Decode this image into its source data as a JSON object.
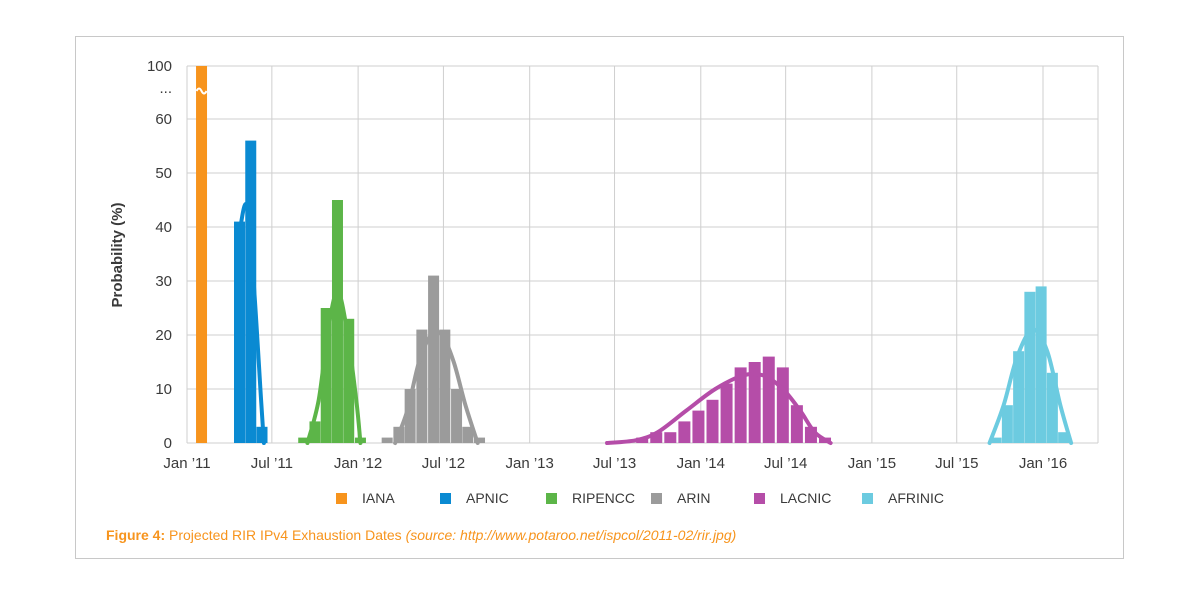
{
  "figure": {
    "label": "Figure 4:",
    "title": "Projected RIR IPv4 Exhaustion Dates",
    "source": "(source: http://www.potaroo.net/ispcol/2011-02/rir.jpg)"
  },
  "chart_data": {
    "type": "bar",
    "ylabel": "Probability (%)",
    "xlabel": "",
    "ylim": [
      0,
      100
    ],
    "y_ticks": [
      "0",
      "10",
      "20",
      "30",
      "40",
      "50",
      "60",
      "...",
      "100"
    ],
    "x_ticks": [
      {
        "label": "Jan ’11",
        "date": "2011-01"
      },
      {
        "label": "Jul ’11",
        "date": "2011-07"
      },
      {
        "label": "Jan ’12",
        "date": "2012-01"
      },
      {
        "label": "Jul ’12",
        "date": "2012-07"
      },
      {
        "label": "Jan ’13",
        "date": "2013-01"
      },
      {
        "label": "Jul ’13",
        "date": "2013-07"
      },
      {
        "label": "Jan ’14",
        "date": "2014-01"
      },
      {
        "label": "Jul ’14",
        "date": "2014-07"
      },
      {
        "label": "Jan ’15",
        "date": "2015-01"
      },
      {
        "label": "Jul ’15",
        "date": "2015-07"
      },
      {
        "label": "Jan ’16",
        "date": "2016-01"
      }
    ],
    "grid": true,
    "legend_position": "bottom",
    "series": [
      {
        "name": "IANA",
        "color": "#f7941d",
        "bars": [
          {
            "date": "2011-02-01",
            "value": 100
          }
        ],
        "curve": []
      },
      {
        "name": "APNIC",
        "color": "#0a8ad2",
        "bars": [
          {
            "date": "2011-04-23",
            "value": 41
          },
          {
            "date": "2011-05-17",
            "value": 56
          },
          {
            "date": "2011-06-10",
            "value": 3
          }
        ],
        "curve": [
          {
            "date": "2011-04-23",
            "value": 39
          },
          {
            "date": "2011-05-08",
            "value": 44
          },
          {
            "date": "2011-05-23",
            "value": 30
          },
          {
            "date": "2011-06-08",
            "value": 8
          },
          {
            "date": "2011-06-14",
            "value": 0
          }
        ]
      },
      {
        "name": "RIPENCC",
        "color": "#5cb548",
        "bars": [
          {
            "date": "2011-09-07",
            "value": 1
          },
          {
            "date": "2011-10-01",
            "value": 4
          },
          {
            "date": "2011-10-25",
            "value": 25
          },
          {
            "date": "2011-11-18",
            "value": 45
          },
          {
            "date": "2011-12-12",
            "value": 23
          },
          {
            "date": "2012-01-06",
            "value": 1
          }
        ],
        "curve": [
          {
            "date": "2011-09-15",
            "value": 0
          },
          {
            "date": "2011-10-09",
            "value": 8
          },
          {
            "date": "2011-10-29",
            "value": 21
          },
          {
            "date": "2011-11-18",
            "value": 28
          },
          {
            "date": "2011-12-08",
            "value": 21
          },
          {
            "date": "2011-12-28",
            "value": 8
          },
          {
            "date": "2012-01-06",
            "value": 0
          }
        ]
      },
      {
        "name": "ARIN",
        "color": "#9b9b9b",
        "bars": [
          {
            "date": "2012-03-03",
            "value": 1
          },
          {
            "date": "2012-03-28",
            "value": 3
          },
          {
            "date": "2012-04-21",
            "value": 10
          },
          {
            "date": "2012-05-16",
            "value": 21
          },
          {
            "date": "2012-06-10",
            "value": 31
          },
          {
            "date": "2012-07-04",
            "value": 21
          },
          {
            "date": "2012-07-29",
            "value": 10
          },
          {
            "date": "2012-08-22",
            "value": 3
          },
          {
            "date": "2012-09-16",
            "value": 1
          }
        ],
        "curve": [
          {
            "date": "2012-03-20",
            "value": 0
          },
          {
            "date": "2012-04-15",
            "value": 6
          },
          {
            "date": "2012-05-10",
            "value": 15
          },
          {
            "date": "2012-06-05",
            "value": 20
          },
          {
            "date": "2012-06-28",
            "value": 20
          },
          {
            "date": "2012-07-23",
            "value": 15
          },
          {
            "date": "2012-08-17",
            "value": 7
          },
          {
            "date": "2012-09-12",
            "value": 0
          }
        ]
      },
      {
        "name": "LACNIC",
        "color": "#b54da8",
        "bars": [
          {
            "date": "2013-08-29",
            "value": 1
          },
          {
            "date": "2013-09-28",
            "value": 2
          },
          {
            "date": "2013-10-28",
            "value": 2
          },
          {
            "date": "2013-11-27",
            "value": 4
          },
          {
            "date": "2013-12-27",
            "value": 6
          },
          {
            "date": "2014-01-26",
            "value": 8
          },
          {
            "date": "2014-02-25",
            "value": 11
          },
          {
            "date": "2014-03-27",
            "value": 14
          },
          {
            "date": "2014-04-26",
            "value": 15
          },
          {
            "date": "2014-05-26",
            "value": 16
          },
          {
            "date": "2014-06-25",
            "value": 14
          },
          {
            "date": "2014-07-25",
            "value": 7
          },
          {
            "date": "2014-08-24",
            "value": 3
          },
          {
            "date": "2014-09-23",
            "value": 1
          }
        ],
        "curve": [
          {
            "date": "2013-06-15",
            "value": 0
          },
          {
            "date": "2013-08-15",
            "value": 0.5
          },
          {
            "date": "2013-10-01",
            "value": 2
          },
          {
            "date": "2013-12-01",
            "value": 6
          },
          {
            "date": "2014-02-01",
            "value": 10
          },
          {
            "date": "2014-04-01",
            "value": 12.5
          },
          {
            "date": "2014-05-15",
            "value": 12.5
          },
          {
            "date": "2014-06-25",
            "value": 10
          },
          {
            "date": "2014-08-01",
            "value": 6
          },
          {
            "date": "2014-09-01",
            "value": 2
          },
          {
            "date": "2014-10-05",
            "value": 0
          }
        ]
      },
      {
        "name": "AFRINIC",
        "color": "#6ccbe0",
        "bars": [
          {
            "date": "2015-09-23",
            "value": 1
          },
          {
            "date": "2015-10-17",
            "value": 7
          },
          {
            "date": "2015-11-10",
            "value": 17
          },
          {
            "date": "2015-12-04",
            "value": 28
          },
          {
            "date": "2015-12-28",
            "value": 29
          },
          {
            "date": "2016-01-21",
            "value": 13
          },
          {
            "date": "2016-02-14",
            "value": 2
          }
        ],
        "curve": [
          {
            "date": "2015-09-09",
            "value": 0
          },
          {
            "date": "2015-10-09",
            "value": 7
          },
          {
            "date": "2015-11-07",
            "value": 16
          },
          {
            "date": "2015-12-10",
            "value": 21
          },
          {
            "date": "2016-01-10",
            "value": 17
          },
          {
            "date": "2016-02-07",
            "value": 7
          },
          {
            "date": "2016-03-01",
            "value": 0
          }
        ]
      }
    ]
  }
}
